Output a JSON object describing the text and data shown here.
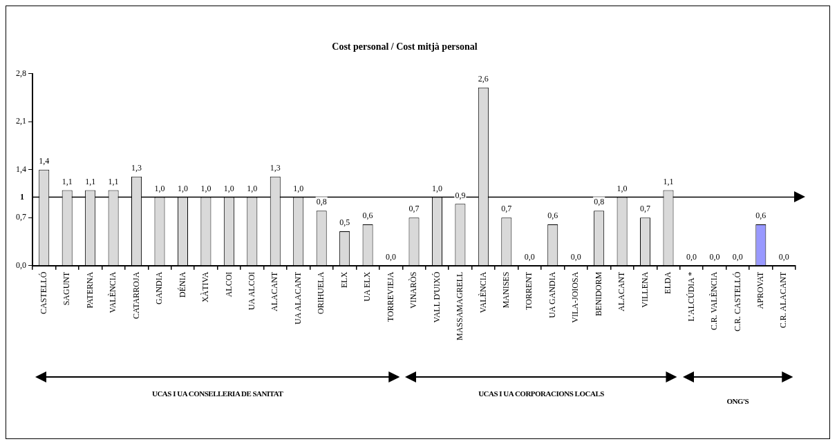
{
  "chart_data": {
    "type": "bar",
    "title": "Cost personal / Cost mitjà personal",
    "categories": [
      "CASTELLÓ",
      "SAGUNT",
      "PATERNA",
      "VALÈNCIA",
      "CATARROJA",
      "GANDIA",
      "DÉNIA",
      "XÀTIVA",
      "ALCOI",
      "UA ALCOI",
      "ALACANT",
      "UA ALACANT",
      "ORIHUELA",
      "ELX",
      "UA ELX",
      "TORREVIEJA",
      "VINARÒS",
      "VALL D'UIXÓ",
      "MASSAMAGRELL",
      "VALÈNCIA",
      "MANISES",
      "TORRENT",
      "UA GANDIA",
      "VILA-JOIOSA",
      "BENIDORM",
      "ALACANT",
      "VILLENA",
      "ELDA",
      "L'ALCÚDIA *",
      "C.R. VALÈNCIA",
      "C.R. CASTELLÓ",
      "APROVAT",
      "C.R. ALACANT"
    ],
    "values": [
      1.4,
      1.1,
      1.1,
      1.1,
      1.3,
      1.0,
      1.0,
      1.0,
      1.0,
      1.0,
      1.3,
      1.0,
      0.8,
      0.5,
      0.6,
      0.0,
      0.7,
      1.0,
      0.9,
      2.6,
      0.7,
      0.0,
      0.6,
      0.0,
      0.8,
      1.0,
      0.7,
      1.1,
      0.0,
      0.0,
      0.0,
      0.6,
      0.0
    ],
    "value_labels": [
      "1,4",
      "1,1",
      "1,1",
      "1,1",
      "1,3",
      "1,0",
      "1,0",
      "1,0",
      "1,0",
      "1,0",
      "1,3",
      "1,0",
      "0,8",
      "0,5",
      "0,6",
      "0,0",
      "0,7",
      "1,0",
      "0,9",
      "2,6",
      "0,7",
      "0,0",
      "0,6",
      "0,0",
      "0,8",
      "1,0",
      "0,7",
      "1,1",
      "0,0",
      "0,0",
      "0,0",
      "0,6",
      "0,0"
    ],
    "colors": [
      "#d9d9d9",
      "#d9d9d9",
      "#d9d9d9",
      "#d9d9d9",
      "#d9d9d9",
      "#d9d9d9",
      "#d9d9d9",
      "#d9d9d9",
      "#d9d9d9",
      "#d9d9d9",
      "#d9d9d9",
      "#d9d9d9",
      "#d9d9d9",
      "#d9d9d9",
      "#d9d9d9",
      "#d9d9d9",
      "#d9d9d9",
      "#d9d9d9",
      "#d9d9d9",
      "#d9d9d9",
      "#d9d9d9",
      "#d9d9d9",
      "#d9d9d9",
      "#d9d9d9",
      "#d9d9d9",
      "#d9d9d9",
      "#d9d9d9",
      "#d9d9d9",
      "#d9d9d9",
      "#d9d9d9",
      "#d9d9d9",
      "#9999ff",
      "#d9d9d9"
    ],
    "ylim": [
      0,
      2.8
    ],
    "yticks": [
      {
        "value": 0,
        "label": "0,0"
      },
      {
        "value": 0.7,
        "label": "0,7"
      },
      {
        "value": 1.4,
        "label": "1,4"
      },
      {
        "value": 2.1,
        "label": "2,1"
      },
      {
        "value": 2.8,
        "label": "2,8"
      }
    ],
    "ref_lines": [
      {
        "axis": "y",
        "value": 1,
        "label": "1"
      }
    ],
    "annotations": [
      "UCAS I UA CONSELLERIA DE SANITAT",
      "UCAS I UA CORPORACIONS LOCALS",
      "ONG'S"
    ],
    "grid": false,
    "legend": false
  }
}
